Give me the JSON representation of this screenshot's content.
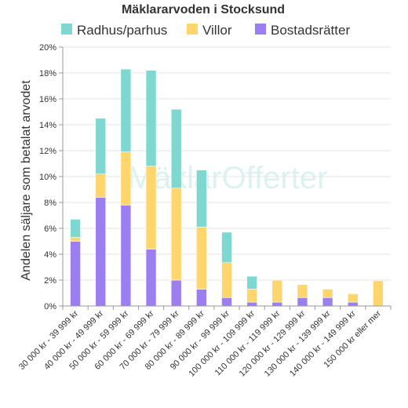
{
  "chart_data": {
    "type": "bar",
    "stacked": true,
    "title": "Mäklararvoden i Stocksund",
    "ylabel": "Andelen säljare som betalat arvodet",
    "ylim": [
      0,
      20
    ],
    "y_ticks": [
      "0%",
      "2%",
      "4%",
      "6%",
      "8%",
      "10%",
      "12%",
      "14%",
      "16%",
      "18%",
      "20%"
    ],
    "grid": true,
    "legend_position": "top",
    "watermark": "MäklarOfferter",
    "categories": [
      "30 000 kr - 39 999 kr",
      "40 000 kr - 49 999 kr",
      "50 000 kr - 59 999 kr",
      "60 000 kr - 69 999 kr",
      "70 000 kr - 79 999 kr",
      "80 000 kr - 89 999 kr",
      "90 000 kr - 99 999 kr",
      "100 000 kr - 109 999 kr",
      "110 000 kr - 119 999 kr",
      "120 000 kr - 129 999 kr",
      "130 000 kr - 139 999 kr",
      "140 000 kr - 149 999 kr",
      "150 000 kr eller mer"
    ],
    "series": [
      {
        "name": "Bostadsrätter",
        "color": "#9b7ef0",
        "values": [
          5.0,
          8.4,
          7.8,
          4.4,
          2.0,
          1.3,
          0.65,
          0.3,
          0.3,
          0.65,
          0.65,
          0.3,
          0.0
        ]
      },
      {
        "name": "Villor",
        "color": "#ffd66b",
        "values": [
          0.3,
          1.8,
          4.1,
          6.4,
          7.1,
          4.8,
          2.7,
          1.0,
          1.7,
          1.0,
          0.65,
          0.65,
          1.95
        ]
      },
      {
        "name": "Radhus/parhus",
        "color": "#7fd8cf",
        "values": [
          1.4,
          4.3,
          6.4,
          7.4,
          6.1,
          4.4,
          2.35,
          1.0,
          0.0,
          0.0,
          0.0,
          0.0,
          0.0
        ]
      }
    ],
    "legend": [
      {
        "name": "Radhus/parhus",
        "color": "#7fd8cf"
      },
      {
        "name": "Villor",
        "color": "#ffd66b"
      },
      {
        "name": "Bostadsrätter",
        "color": "#9b7ef0"
      }
    ]
  }
}
